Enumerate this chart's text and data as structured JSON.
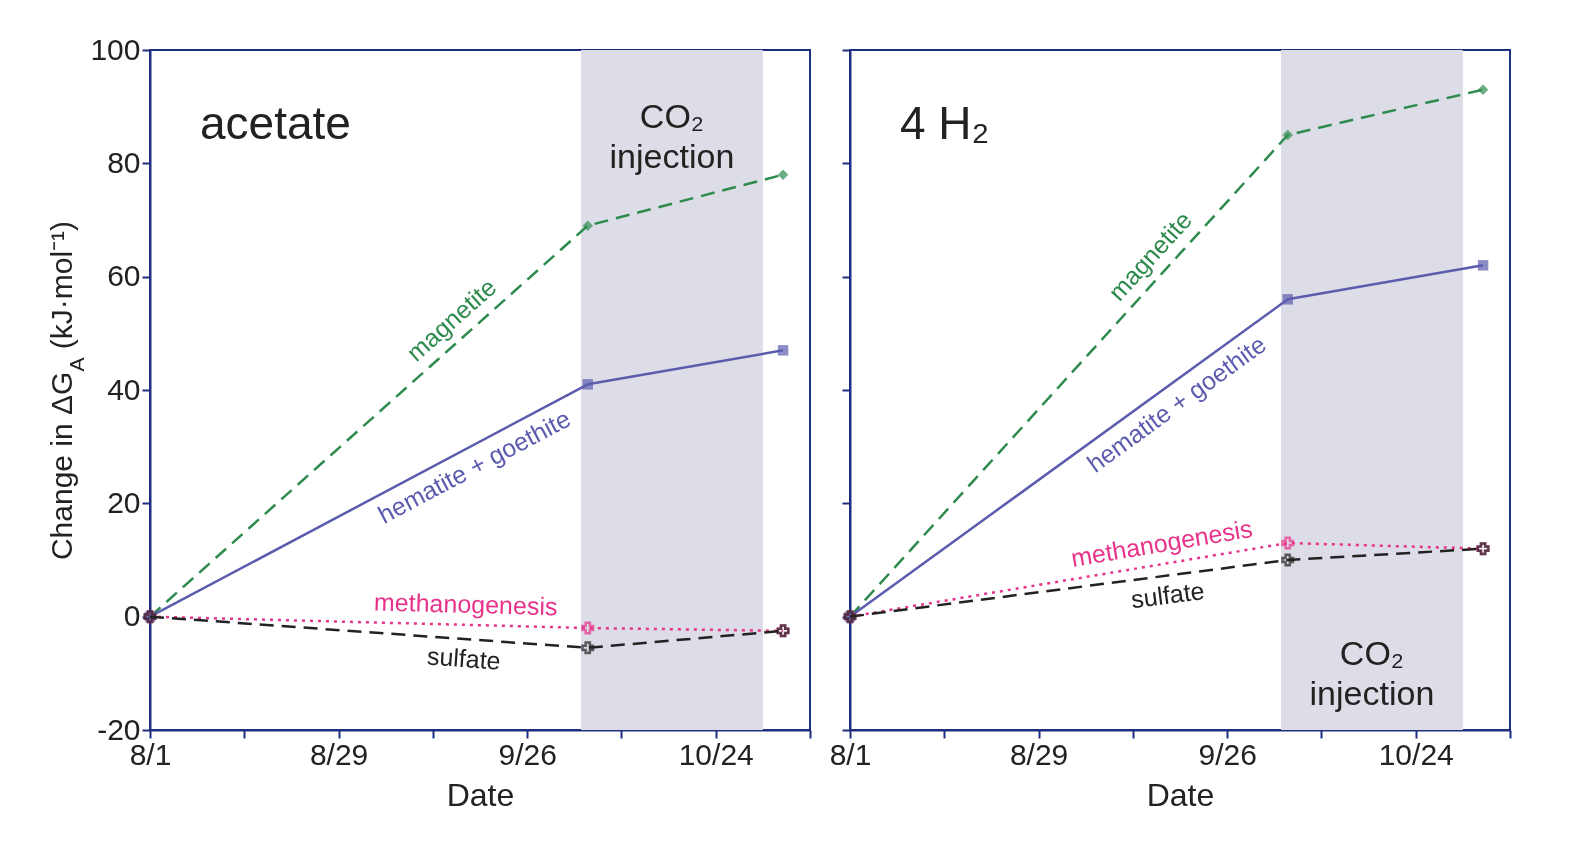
{
  "chart_data": [
    {
      "type": "line",
      "title": "acetate",
      "xlabel": "Date",
      "ylabel": "Change in ΔG$_{A}$ (kJ·mol⁻¹)",
      "xlim": [
        "--08-01",
        "--11-07"
      ],
      "xticks": [
        {
          "value": "--08-01",
          "label": "8/1"
        },
        {
          "value": "--08-15",
          "label": null
        },
        {
          "value": "--08-29",
          "label": "8/29"
        },
        {
          "value": "--09-12",
          "label": null
        },
        {
          "value": "--09-26",
          "label": "9/26"
        },
        {
          "value": "--10-10",
          "label": null
        },
        {
          "value": "--10-24",
          "label": "10/24"
        },
        {
          "value": "--11-07",
          "label": null
        }
      ],
      "ylim": [
        -20,
        100
      ],
      "yticks": [
        -20,
        0,
        20,
        40,
        60,
        80,
        100
      ],
      "grid": false,
      "legend": false,
      "bands": [
        {
          "axis": "x",
          "from": "--10-04",
          "to": "--10-31",
          "color": "#dcdde6",
          "label": "CO₂ injection"
        }
      ],
      "x": [
        "--08-01",
        "--10-05",
        "--11-03"
      ],
      "series": [
        {
          "name": "magnetite",
          "color": "#2e8b4e",
          "values": [
            0,
            69,
            78
          ],
          "marker": "diamond",
          "line_style": "dashed"
        },
        {
          "name": "hematite + goethite",
          "color": "#5c5cae",
          "values": [
            0,
            41,
            47
          ],
          "marker": "square",
          "line_style": "solid"
        },
        {
          "name": "methanogenesis",
          "color": "#e8338a",
          "values": [
            0,
            -2,
            -2.5
          ],
          "marker": "cross",
          "line_style": "dotted"
        },
        {
          "name": "sulfate",
          "color": "#222222",
          "values": [
            0,
            -5.5,
            -2.5
          ],
          "marker": "cross",
          "line_style": "dashed"
        }
      ]
    },
    {
      "type": "line",
      "title": "4 H₂",
      "xlabel": "Date",
      "xlim": [
        "--08-01",
        "--11-07"
      ],
      "xticks": [
        {
          "value": "--08-01",
          "label": "8/1"
        },
        {
          "value": "--08-15",
          "label": null
        },
        {
          "value": "--08-29",
          "label": "8/29"
        },
        {
          "value": "--09-12",
          "label": null
        },
        {
          "value": "--09-26",
          "label": "9/26"
        },
        {
          "value": "--10-10",
          "label": null
        },
        {
          "value": "--10-24",
          "label": "10/24"
        },
        {
          "value": "--11-07",
          "label": null
        }
      ],
      "ylim": [
        -20,
        100
      ],
      "yticks": [
        -20,
        0,
        20,
        40,
        60,
        80,
        100
      ],
      "tick_labels": "x",
      "grid": false,
      "legend": false,
      "bands": [
        {
          "axis": "x",
          "from": "--10-04",
          "to": "--10-31",
          "color": "#dcdde6",
          "label": "CO₂ injection"
        }
      ],
      "x": [
        "--08-01",
        "--10-05",
        "--11-03"
      ],
      "series": [
        {
          "name": "magnetite",
          "color": "#2e8b4e",
          "values": [
            0,
            85,
            93
          ],
          "marker": "diamond",
          "line_style": "dashed"
        },
        {
          "name": "hematite + goethite",
          "color": "#5c5cae",
          "values": [
            0,
            56,
            62
          ],
          "marker": "square",
          "line_style": "solid"
        },
        {
          "name": "methanogenesis",
          "color": "#e8338a",
          "values": [
            0,
            13,
            12
          ],
          "marker": "cross",
          "line_style": "dotted"
        },
        {
          "name": "sulfate",
          "color": "#222222",
          "values": [
            0,
            10,
            12
          ],
          "marker": "cross",
          "line_style": "dashed"
        }
      ]
    }
  ]
}
